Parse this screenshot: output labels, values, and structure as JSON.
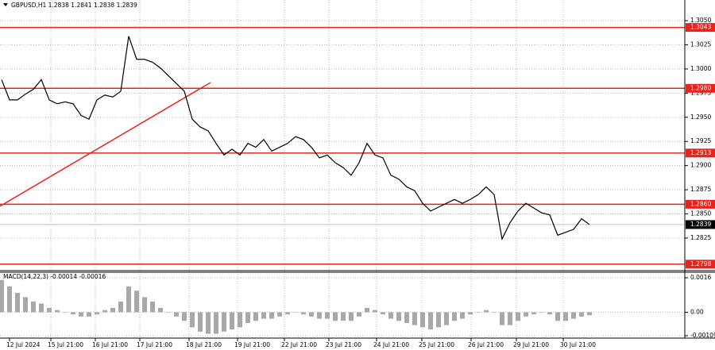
{
  "chart_data": [
    {
      "type": "line",
      "title": "GBPUSD,H1  1.2838 1.2841 1.2838 1.2839",
      "color": "#000000",
      "x_labels": [
        "12 Jul 2024",
        "15 Jul 21:00",
        "16 Jul 21:00",
        "17 Jul 21:00",
        "18 Jul 21:00",
        "19 Jul 21:00",
        "22 Jul 21:00",
        "23 Jul 21:00",
        "24 Jul 21:00",
        "25 Jul 21:00",
        "26 Jul 21:00",
        "29 Jul 21:00",
        "30 Jul 21:00"
      ],
      "values": [
        1.2989,
        1.2968,
        1.2968,
        1.2974,
        1.2979,
        1.2989,
        1.2968,
        1.2964,
        1.2966,
        1.2964,
        1.2952,
        1.2948,
        1.2968,
        1.2973,
        1.2971,
        1.2977,
        1.3034,
        1.301,
        1.301,
        1.3007,
        1.3001,
        1.2993,
        1.2985,
        1.2977,
        1.2948,
        1.294,
        1.2936,
        1.2923,
        1.2911,
        1.2917,
        1.2911,
        1.2923,
        1.2919,
        1.2927,
        1.2915,
        1.2919,
        1.2923,
        1.293,
        1.2927,
        1.2919,
        1.2908,
        1.2911,
        1.2903,
        1.2898,
        1.289,
        1.2903,
        1.2923,
        1.2911,
        1.2908,
        1.289,
        1.2886,
        1.2878,
        1.2874,
        1.2861,
        1.2853,
        1.2857,
        1.2861,
        1.2865,
        1.2861,
        1.2865,
        1.287,
        1.2878,
        1.287,
        1.2824,
        1.2841,
        1.2853,
        1.2861,
        1.2856,
        1.2851,
        1.2849,
        1.2828,
        1.2831,
        1.2834,
        1.2845,
        1.2839
      ],
      "ylim": [
        1.27913,
        1.30714
      ],
      "yticks": [
        {
          "value": 1.305,
          "label": "1.3050"
        },
        1.3025,
        {
          "value": 1.3,
          "label": "1.3000"
        },
        1.2975,
        {
          "value": 1.295,
          "label": "1.2950"
        },
        1.2925,
        {
          "value": 1.29,
          "label": "1.2900"
        },
        1.2875,
        {
          "value": 1.285,
          "label": "1.2850"
        },
        1.2825
      ],
      "levels": [
        1.3043,
        {
          "value": 1.298,
          "label": "1.2980"
        },
        1.2913,
        {
          "value": 1.286,
          "label": "1.2860"
        },
        1.2798
      ],
      "level_color": "#e8231d",
      "current_price": 1.2839,
      "trendline": [
        1.2858,
        1.2986
      ],
      "grid": true
    },
    {
      "type": "bar",
      "title": "MACD(14,22,3) -0.00014 -0.00016",
      "color": "#a8a8a8",
      "values": [
        0.0015,
        0.0012,
        0.0009,
        0.0007,
        0.0005,
        0.0004,
        0.0002,
        0.0001,
        0.0,
        -0.0001,
        -0.0002,
        -0.0002,
        -0.0001,
        0.0001,
        0.0002,
        0.0005,
        0.0012,
        0.001,
        0.0007,
        0.0005,
        0.0002,
        0.0,
        -0.0002,
        -0.0004,
        -0.0007,
        -0.0009,
        -0.001,
        -0.001,
        -0.0009,
        -0.0008,
        -0.0007,
        -0.0005,
        -0.0004,
        -0.0003,
        -0.0003,
        -0.0002,
        -0.0001,
        0.0,
        -0.0001,
        -0.0002,
        -0.0003,
        -0.0003,
        -0.0004,
        -0.0004,
        -0.0004,
        -0.0002,
        0.0002,
        0.0001,
        -0.0001,
        -0.0003,
        -0.0004,
        -0.0005,
        -0.0006,
        -0.0007,
        -0.0008,
        -0.0007,
        -0.0006,
        -0.0004,
        -0.0003,
        -0.0001,
        0.0,
        0.0001,
        0.0,
        -0.0006,
        -0.0006,
        -0.0004,
        -0.0002,
        -0.0001,
        0.0,
        -0.0001,
        -0.0004,
        -0.0004,
        -0.0003,
        -0.0002,
        -0.00014
      ],
      "ylim": [
        -0.0012,
        0.00182
      ],
      "yticks": [
        0.0016,
        {
          "value": 0,
          "label": "0.00"
        },
        -0.00109
      ],
      "grid": true
    }
  ]
}
